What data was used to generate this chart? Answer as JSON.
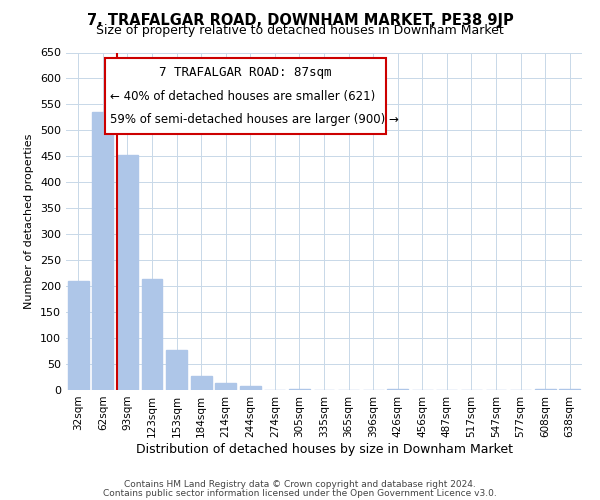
{
  "title": "7, TRAFALGAR ROAD, DOWNHAM MARKET, PE38 9JP",
  "subtitle": "Size of property relative to detached houses in Downham Market",
  "xlabel": "Distribution of detached houses by size in Downham Market",
  "ylabel": "Number of detached properties",
  "bar_labels": [
    "32sqm",
    "62sqm",
    "93sqm",
    "123sqm",
    "153sqm",
    "184sqm",
    "214sqm",
    "244sqm",
    "274sqm",
    "305sqm",
    "335sqm",
    "365sqm",
    "396sqm",
    "426sqm",
    "456sqm",
    "487sqm",
    "517sqm",
    "547sqm",
    "577sqm",
    "608sqm",
    "638sqm"
  ],
  "bar_values": [
    210,
    535,
    452,
    213,
    78,
    27,
    14,
    8,
    0,
    2,
    0,
    0,
    0,
    1,
    0,
    0,
    0,
    0,
    0,
    1,
    1
  ],
  "bar_color": "#aec6e8",
  "vline_x_index": 1.575,
  "annotation_title": "7 TRAFALGAR ROAD: 87sqm",
  "annotation_line1": "← 40% of detached houses are smaller (621)",
  "annotation_line2": "59% of semi-detached houses are larger (900) →",
  "vline_color": "#cc0000",
  "box_color": "#cc0000",
  "ylim": [
    0,
    650
  ],
  "yticks": [
    0,
    50,
    100,
    150,
    200,
    250,
    300,
    350,
    400,
    450,
    500,
    550,
    600,
    650
  ],
  "footer_line1": "Contains HM Land Registry data © Crown copyright and database right 2024.",
  "footer_line2": "Contains public sector information licensed under the Open Government Licence v3.0.",
  "bg_color": "#ffffff",
  "grid_color": "#c8d8e8",
  "title_fontsize": 10.5,
  "subtitle_fontsize": 9,
  "ylabel_fontsize": 8,
  "xlabel_fontsize": 9
}
